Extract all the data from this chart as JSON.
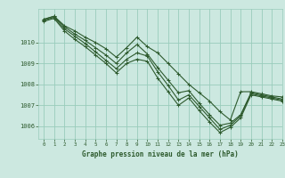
{
  "title": "Graphe pression niveau de la mer (hPa)",
  "background_color": "#cce8e0",
  "grid_color": "#99ccbb",
  "line_color": "#2d5a2d",
  "marker": "+",
  "xlim": [
    -0.5,
    23
  ],
  "ylim": [
    1005.4,
    1011.6
  ],
  "yticks": [
    1006,
    1007,
    1008,
    1009,
    1010
  ],
  "xtick_labels": [
    "0",
    "1",
    "2",
    "3",
    "4",
    "5",
    "6",
    "7",
    "8",
    "9",
    "10",
    "11",
    "12",
    "13",
    "14",
    "15",
    "16",
    "17",
    "18",
    "19",
    "20",
    "21",
    "22",
    "23"
  ],
  "xticks": [
    0,
    1,
    2,
    3,
    4,
    5,
    6,
    7,
    8,
    9,
    10,
    11,
    12,
    13,
    14,
    15,
    16,
    17,
    18,
    19,
    20,
    21,
    22,
    23
  ],
  "series": [
    [
      1011.1,
      1011.25,
      1010.8,
      1010.55,
      1010.25,
      1010.0,
      1009.7,
      1009.3,
      1009.75,
      1010.25,
      1009.8,
      1009.5,
      1009.0,
      1008.5,
      1008.0,
      1007.6,
      1007.2,
      1006.7,
      1006.3,
      1007.65,
      1007.65,
      1007.55,
      1007.45,
      1007.4
    ],
    [
      1011.1,
      1011.25,
      1010.75,
      1010.4,
      1010.1,
      1009.75,
      1009.4,
      1009.0,
      1009.5,
      1009.9,
      1009.45,
      1008.8,
      1008.2,
      1007.6,
      1007.7,
      1007.1,
      1006.55,
      1006.05,
      1006.15,
      1006.55,
      1007.6,
      1007.5,
      1007.4,
      1007.3
    ],
    [
      1011.05,
      1011.2,
      1010.65,
      1010.3,
      1009.95,
      1009.55,
      1009.15,
      1008.75,
      1009.2,
      1009.5,
      1009.35,
      1008.6,
      1007.95,
      1007.25,
      1007.5,
      1006.95,
      1006.4,
      1005.85,
      1006.05,
      1006.5,
      1007.55,
      1007.45,
      1007.35,
      1007.25
    ],
    [
      1011.0,
      1011.15,
      1010.55,
      1010.15,
      1009.8,
      1009.4,
      1009.0,
      1008.55,
      1009.0,
      1009.2,
      1009.1,
      1008.3,
      1007.65,
      1007.0,
      1007.35,
      1006.75,
      1006.2,
      1005.7,
      1005.95,
      1006.4,
      1007.5,
      1007.4,
      1007.3,
      1007.2
    ]
  ],
  "figsize": [
    3.2,
    2.0
  ],
  "dpi": 100
}
